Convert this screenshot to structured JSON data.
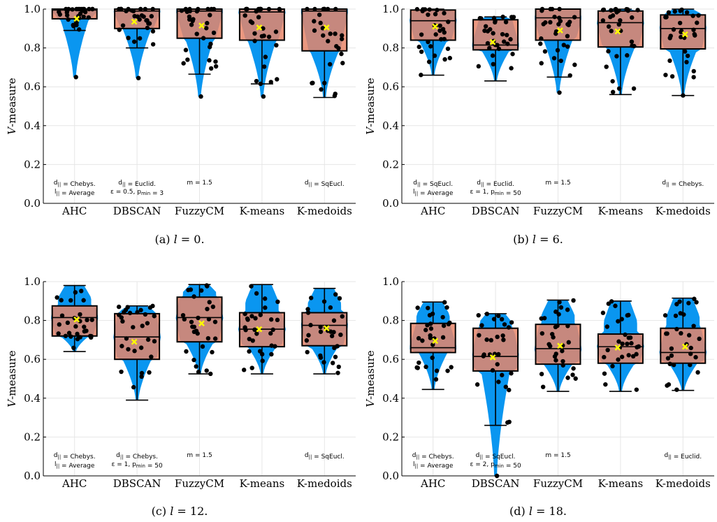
{
  "colors": {
    "violin": "#0a96f0",
    "box": "#e8866a",
    "mean": "#ffff00",
    "dots": "#000000",
    "grid": "#e6e6e6"
  },
  "chart_data": [
    {
      "type": "box-violin",
      "caption": "(a) l = 0.",
      "caption_prefix": "(a) ",
      "caption_var": "l",
      "caption_value": " = 0.",
      "ylabel_var": "V",
      "ylabel": "-measure",
      "ylim": [
        0,
        1
      ],
      "yticks": [
        "0.0",
        "0.2",
        "0.4",
        "0.6",
        "0.8",
        "1.0"
      ],
      "categories": [
        "AHC",
        "DBSCAN",
        "FuzzyCM",
        "K-means",
        "K-medoids"
      ],
      "series": [
        {
          "category": "AHC",
          "q1": 0.95,
          "median": 0.995,
          "q3": 1.0,
          "wlow": 0.89,
          "whigh": 1.0,
          "mean": 0.95,
          "min": 0.65
        },
        {
          "category": "DBSCAN",
          "q1": 0.9,
          "median": 0.99,
          "q3": 1.0,
          "wlow": 0.8,
          "whigh": 1.0,
          "mean": 0.935,
          "min": 0.645
        },
        {
          "category": "FuzzyCM",
          "q1": 0.85,
          "median": 0.99,
          "q3": 1.0,
          "wlow": 0.665,
          "whigh": 1.0,
          "mean": 0.915,
          "min": 0.55
        },
        {
          "category": "K-means",
          "q1": 0.84,
          "median": 0.985,
          "q3": 1.0,
          "wlow": 0.615,
          "whigh": 1.0,
          "mean": 0.905,
          "min": 0.55
        },
        {
          "category": "K-medoids",
          "q1": 0.785,
          "median": 0.99,
          "q3": 1.0,
          "wlow": 0.545,
          "whigh": 1.0,
          "mean": 0.905,
          "min": 0.545
        }
      ],
      "annotations": [
        {
          "category": "AHC",
          "lines": [
            "d|| = Chebys.",
            "l|| = Average"
          ]
        },
        {
          "category": "DBSCAN",
          "lines": [
            "d|| = Euclid.",
            "ε = 0.5, pmin = 3"
          ]
        },
        {
          "category": "FuzzyCM",
          "lines": [
            "m = 1.5"
          ]
        },
        {
          "category": "K-medoids",
          "lines": [
            "d|| = SqEucl."
          ]
        }
      ]
    },
    {
      "type": "box-violin",
      "caption": "(b) l = 6.",
      "caption_prefix": "(b) ",
      "caption_var": "l",
      "caption_value": " = 6.",
      "ylabel_var": "V",
      "ylabel": "-measure",
      "ylim": [
        0,
        1
      ],
      "yticks": [
        "0.0",
        "0.2",
        "0.4",
        "0.6",
        "0.8",
        "1.0"
      ],
      "categories": [
        "AHC",
        "DBSCAN",
        "FuzzyCM",
        "K-means",
        "K-medoids"
      ],
      "series": [
        {
          "category": "AHC",
          "q1": 0.84,
          "median": 0.94,
          "q3": 0.995,
          "wlow": 0.66,
          "whigh": 1.0,
          "mean": 0.91,
          "min": 0.66
        },
        {
          "category": "DBSCAN",
          "q1": 0.79,
          "median": 0.815,
          "q3": 0.945,
          "wlow": 0.63,
          "whigh": 0.96,
          "mean": 0.83,
          "min": 0.63
        },
        {
          "category": "FuzzyCM",
          "q1": 0.84,
          "median": 0.955,
          "q3": 1.0,
          "wlow": 0.65,
          "whigh": 1.0,
          "mean": 0.89,
          "min": 0.57
        },
        {
          "category": "K-means",
          "q1": 0.805,
          "median": 0.93,
          "q3": 0.99,
          "wlow": 0.56,
          "whigh": 1.0,
          "mean": 0.885,
          "min": 0.56
        },
        {
          "category": "K-medoids",
          "q1": 0.795,
          "median": 0.9,
          "q3": 0.97,
          "wlow": 0.555,
          "whigh": 1.0,
          "mean": 0.87,
          "min": 0.555
        }
      ],
      "annotations": [
        {
          "category": "AHC",
          "lines": [
            "d|| = SqEucl.",
            "l|| = Average"
          ]
        },
        {
          "category": "DBSCAN",
          "lines": [
            "d|| = Euclid.",
            "ε = 1, pmin = 50"
          ]
        },
        {
          "category": "FuzzyCM",
          "lines": [
            "m = 1.5"
          ]
        },
        {
          "category": "K-medoids",
          "lines": [
            "d|| = Chebys."
          ]
        }
      ]
    },
    {
      "type": "box-violin",
      "caption": "(c) l = 12.",
      "caption_prefix": "(c) ",
      "caption_var": "l",
      "caption_value": " = 12.",
      "ylabel_var": "V",
      "ylabel": "-measure",
      "ylim": [
        0,
        1
      ],
      "yticks": [
        "0.0",
        "0.2",
        "0.4",
        "0.6",
        "0.8",
        "1.0"
      ],
      "categories": [
        "AHC",
        "DBSCAN",
        "FuzzyCM",
        "K-means",
        "K-medoids"
      ],
      "series": [
        {
          "category": "AHC",
          "q1": 0.72,
          "median": 0.815,
          "q3": 0.875,
          "wlow": 0.64,
          "whigh": 0.98,
          "mean": 0.805,
          "min": 0.64
        },
        {
          "category": "DBSCAN",
          "q1": 0.6,
          "median": 0.715,
          "q3": 0.835,
          "wlow": 0.39,
          "whigh": 0.875,
          "mean": 0.69,
          "min": 0.39
        },
        {
          "category": "FuzzyCM",
          "q1": 0.69,
          "median": 0.815,
          "q3": 0.92,
          "wlow": 0.525,
          "whigh": 0.985,
          "mean": 0.785,
          "min": 0.525
        },
        {
          "category": "K-means",
          "q1": 0.665,
          "median": 0.755,
          "q3": 0.84,
          "wlow": 0.525,
          "whigh": 0.985,
          "mean": 0.755,
          "min": 0.525
        },
        {
          "category": "K-medoids",
          "q1": 0.67,
          "median": 0.775,
          "q3": 0.84,
          "wlow": 0.525,
          "whigh": 0.965,
          "mean": 0.76,
          "min": 0.525
        }
      ],
      "annotations": [
        {
          "category": "AHC",
          "lines": [
            "d|| = Chebys.",
            "l|| = Average"
          ]
        },
        {
          "category": "DBSCAN",
          "lines": [
            "d|| = Chebys.",
            "ε = 1, pmin = 50"
          ]
        },
        {
          "category": "FuzzyCM",
          "lines": [
            "m = 1.5"
          ]
        },
        {
          "category": "K-medoids",
          "lines": [
            "d|| = SqEucl."
          ]
        }
      ]
    },
    {
      "type": "box-violin",
      "caption": "(d) l = 18.",
      "caption_prefix": "(d) ",
      "caption_var": "l",
      "caption_value": " = 18.",
      "ylabel_var": "V",
      "ylabel": "-measure",
      "ylim": [
        0,
        1
      ],
      "yticks": [
        "0.0",
        "0.2",
        "0.4",
        "0.6",
        "0.8",
        "1.0"
      ],
      "categories": [
        "AHC",
        "DBSCAN",
        "FuzzyCM",
        "K-means",
        "K-medoids"
      ],
      "series": [
        {
          "category": "AHC",
          "q1": 0.635,
          "median": 0.66,
          "q3": 0.785,
          "wlow": 0.445,
          "whigh": 0.895,
          "mean": 0.695,
          "min": 0.445
        },
        {
          "category": "DBSCAN",
          "q1": 0.54,
          "median": 0.615,
          "q3": 0.76,
          "wlow": 0.26,
          "whigh": 0.835,
          "mean": 0.61,
          "min": 0.0
        },
        {
          "category": "FuzzyCM",
          "q1": 0.575,
          "median": 0.655,
          "q3": 0.78,
          "wlow": 0.435,
          "whigh": 0.905,
          "mean": 0.67,
          "min": 0.435
        },
        {
          "category": "K-means",
          "q1": 0.58,
          "median": 0.665,
          "q3": 0.73,
          "wlow": 0.435,
          "whigh": 0.9,
          "mean": 0.66,
          "min": 0.435
        },
        {
          "category": "K-medoids",
          "q1": 0.58,
          "median": 0.635,
          "q3": 0.76,
          "wlow": 0.44,
          "whigh": 0.915,
          "mean": 0.665,
          "min": 0.44
        }
      ],
      "annotations": [
        {
          "category": "AHC",
          "lines": [
            "d|| = Chebys.",
            "l|| = Average"
          ]
        },
        {
          "category": "DBSCAN",
          "lines": [
            "d|| = SqEucl.",
            "ε = 2, pmin = 50"
          ]
        },
        {
          "category": "FuzzyCM",
          "lines": [
            "m = 1.5"
          ]
        },
        {
          "category": "K-medoids",
          "lines": [
            "d|| = Euclid."
          ]
        }
      ]
    }
  ]
}
